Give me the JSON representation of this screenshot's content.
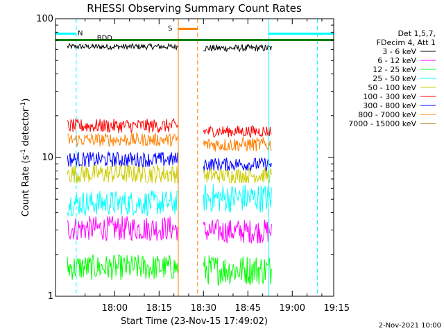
{
  "chart_data": {
    "type": "line",
    "title": "RHESSI Observing Summary Count Rates",
    "xlabel": "Start Time (23-Nov-15 17:49:02)",
    "ylabel": "Count Rate (s",
    "ylabel_sup": "-1",
    "ylabel_mid": " detector",
    "ylabel_end": ")",
    "yscale": "log",
    "ylim": [
      1,
      100
    ],
    "ytick_labels": [
      "1",
      "10",
      "100"
    ],
    "xlim_minutes": [
      -9,
      85
    ],
    "xtick_labels": [
      "18:00",
      "18:15",
      "18:30",
      "18:45",
      "19:00",
      "19:15"
    ],
    "xtick_minutes": [
      11,
      26,
      41,
      56,
      71,
      86
    ],
    "legend_header": [
      "Det 1,5,7,",
      "FDecim 4, Att 1"
    ],
    "series": [
      {
        "name": "3 - 6 keV",
        "color": "#000000",
        "seg1": [
          60,
          66
        ],
        "seg2": [
          58,
          65
        ]
      },
      {
        "name": "6 - 12 keV",
        "color": "#ff00ff",
        "seg1": [
          2.5,
          3.8
        ],
        "seg2": [
          2.4,
          3.6
        ]
      },
      {
        "name": "12 - 25 keV",
        "color": "#00ff00",
        "seg1": [
          1.3,
          2.0
        ],
        "seg2": [
          1.2,
          2.0
        ]
      },
      {
        "name": "25 - 50 keV",
        "color": "#00ffff",
        "seg1": [
          3.8,
          5.8
        ],
        "seg2": [
          4.0,
          6.5
        ]
      },
      {
        "name": "50 - 100 keV",
        "color": "#cccc00",
        "seg1": [
          6.5,
          9.0
        ],
        "seg2": [
          6.5,
          8.5
        ]
      },
      {
        "name": "100 - 300 keV",
        "color": "#ff0000",
        "seg1": [
          15,
          19
        ],
        "seg2": [
          14,
          17
        ]
      },
      {
        "name": "300 - 800 keV",
        "color": "#0000ff",
        "seg1": [
          8.5,
          11
        ],
        "seg2": [
          8.0,
          10
        ]
      },
      {
        "name": "800 - 7000 keV",
        "color": "#ff8000",
        "seg1": [
          12,
          15
        ],
        "seg2": [
          11,
          14
        ]
      },
      {
        "name": "7000 - 15000 keV",
        "color": "#996600",
        "seg1": [],
        "seg2": []
      }
    ],
    "data_segments_minutes": [
      [
        -5,
        32.5
      ],
      [
        41,
        64
      ]
    ],
    "annotations": [
      {
        "text": "N",
        "color": "#00ffff"
      },
      {
        "text": "S",
        "color": "#ff8000"
      },
      {
        "text": "BDD",
        "color": "#008000"
      }
    ],
    "footer_date": "2-Nov-2021 10:00"
  }
}
